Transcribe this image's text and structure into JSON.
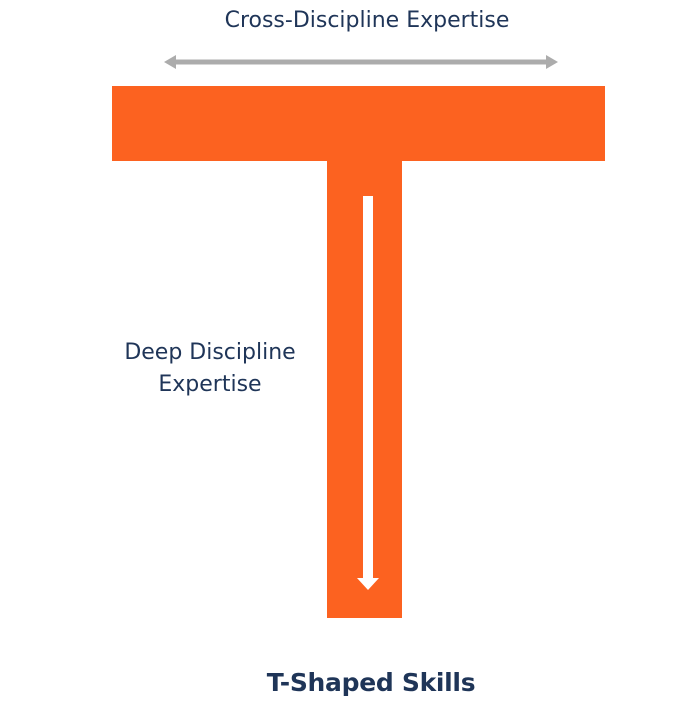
{
  "labels": {
    "cross_discipline": "Cross-Discipline Expertise",
    "deep_discipline_line1": "Deep Discipline",
    "deep_discipline_line2": "Expertise",
    "title": "T-Shaped Skills"
  },
  "colors": {
    "t_shape": "#fc6220",
    "horizontal_arrow": "#acacac",
    "vertical_arrow": "#ffffff",
    "text": "#1f3558",
    "background": "#ffffff"
  },
  "arrows": {
    "horizontal": "double-headed",
    "vertical": "downward"
  }
}
